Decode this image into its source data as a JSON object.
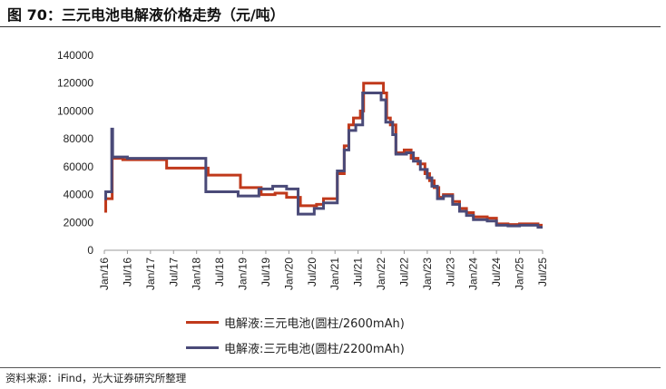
{
  "page": {
    "title": "图 70：三元电池电解液价格走势（元/吨）",
    "source": "资料来源：iFind，光大证券研究所整理"
  },
  "chart_data": {
    "type": "line",
    "title": "图 70：三元电池电解液价格走势（元/吨）",
    "xlabel": "",
    "ylabel": "",
    "ylim": [
      0,
      140000
    ],
    "yticks": [
      0,
      20000,
      40000,
      60000,
      80000,
      100000,
      120000,
      140000
    ],
    "xlim": [
      2016.0,
      2025.5
    ],
    "xticks": [
      {
        "label": "Jan/16",
        "t": 2016.0
      },
      {
        "label": "Jul/16",
        "t": 2016.5
      },
      {
        "label": "Jan/17",
        "t": 2017.0
      },
      {
        "label": "Jul/17",
        "t": 2017.5
      },
      {
        "label": "Jan/18",
        "t": 2018.0
      },
      {
        "label": "Jul/18",
        "t": 2018.5
      },
      {
        "label": "Jan/19",
        "t": 2019.0
      },
      {
        "label": "Jul/19",
        "t": 2019.5
      },
      {
        "label": "Jan/20",
        "t": 2020.0
      },
      {
        "label": "Jul/20",
        "t": 2020.5
      },
      {
        "label": "Jan/21",
        "t": 2021.0
      },
      {
        "label": "Jul/21",
        "t": 2021.5
      },
      {
        "label": "Jan/22",
        "t": 2022.0
      },
      {
        "label": "Jul/22",
        "t": 2022.5
      },
      {
        "label": "Jan/23",
        "t": 2023.0
      },
      {
        "label": "Jul/23",
        "t": 2023.5
      },
      {
        "label": "Jan/24",
        "t": 2024.0
      },
      {
        "label": "Jul/24",
        "t": 2024.5
      },
      {
        "label": "Jan/25",
        "t": 2025.0
      },
      {
        "label": "Jul/25",
        "t": 2025.5
      }
    ],
    "grid": false,
    "legend_position": "bottom",
    "series": [
      {
        "name": "电解液:三元电池(圆柱/2600mAh)",
        "color": "#C0391B",
        "step": true,
        "points": [
          [
            2016.0,
            28000
          ],
          [
            2016.03,
            37000
          ],
          [
            2016.17,
            66000
          ],
          [
            2016.4,
            65000
          ],
          [
            2017.35,
            59000
          ],
          [
            2018.25,
            54000
          ],
          [
            2018.95,
            45000
          ],
          [
            2019.4,
            40000
          ],
          [
            2019.7,
            41000
          ],
          [
            2019.95,
            38000
          ],
          [
            2020.25,
            32000
          ],
          [
            2020.6,
            33000
          ],
          [
            2020.75,
            37000
          ],
          [
            2021.05,
            55000
          ],
          [
            2021.2,
            75000
          ],
          [
            2021.3,
            90000
          ],
          [
            2021.4,
            95000
          ],
          [
            2021.55,
            100000
          ],
          [
            2021.62,
            120000
          ],
          [
            2022.05,
            113000
          ],
          [
            2022.12,
            95000
          ],
          [
            2022.2,
            90000
          ],
          [
            2022.32,
            70000
          ],
          [
            2022.5,
            72000
          ],
          [
            2022.65,
            66000
          ],
          [
            2022.8,
            62000
          ],
          [
            2022.95,
            55000
          ],
          [
            2023.05,
            50000
          ],
          [
            2023.15,
            45000
          ],
          [
            2023.25,
            38000
          ],
          [
            2023.35,
            40000
          ],
          [
            2023.55,
            35000
          ],
          [
            2023.7,
            30000
          ],
          [
            2023.85,
            27000
          ],
          [
            2024.0,
            24000
          ],
          [
            2024.3,
            23000
          ],
          [
            2024.5,
            19000
          ],
          [
            2024.75,
            18500
          ],
          [
            2025.0,
            19000
          ],
          [
            2025.4,
            18000
          ],
          [
            2025.5,
            18000
          ]
        ]
      },
      {
        "name": "电解液:三元电池(圆柱/2200mAh)",
        "color": "#4A4A78",
        "step": true,
        "points": [
          [
            2016.0,
            37000
          ],
          [
            2016.03,
            42000
          ],
          [
            2016.15,
            42000
          ],
          [
            2016.16,
            87000
          ],
          [
            2016.18,
            67000
          ],
          [
            2016.5,
            66000
          ],
          [
            2018.2,
            42000
          ],
          [
            2018.9,
            39000
          ],
          [
            2019.35,
            44000
          ],
          [
            2019.65,
            46000
          ],
          [
            2019.95,
            44000
          ],
          [
            2020.2,
            26000
          ],
          [
            2020.55,
            30000
          ],
          [
            2020.75,
            34000
          ],
          [
            2021.05,
            57000
          ],
          [
            2021.2,
            72000
          ],
          [
            2021.3,
            86000
          ],
          [
            2021.45,
            90000
          ],
          [
            2021.6,
            113000
          ],
          [
            2022.0,
            108000
          ],
          [
            2022.1,
            92000
          ],
          [
            2022.25,
            83000
          ],
          [
            2022.32,
            69000
          ],
          [
            2022.55,
            70000
          ],
          [
            2022.7,
            64000
          ],
          [
            2022.85,
            58000
          ],
          [
            2023.0,
            52000
          ],
          [
            2023.1,
            46000
          ],
          [
            2023.22,
            37000
          ],
          [
            2023.35,
            39000
          ],
          [
            2023.55,
            33000
          ],
          [
            2023.7,
            28000
          ],
          [
            2023.85,
            25000
          ],
          [
            2024.0,
            22000
          ],
          [
            2024.3,
            21000
          ],
          [
            2024.5,
            18000
          ],
          [
            2024.75,
            17500
          ],
          [
            2025.0,
            18000
          ],
          [
            2025.4,
            16500
          ],
          [
            2025.5,
            16500
          ]
        ]
      }
    ]
  }
}
